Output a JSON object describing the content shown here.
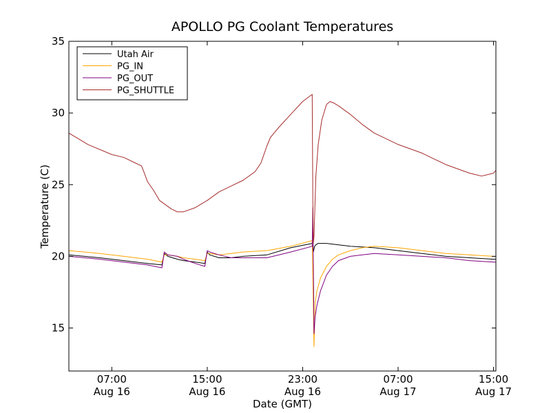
{
  "chart_data": {
    "type": "line",
    "title": "APOLLO PG Coolant Temperatures",
    "xlabel": "Date (GMT)",
    "ylabel": "Temperature (C)",
    "ylim": [
      12,
      35
    ],
    "xlim_hours_since_aug16_0000": [
      3.4,
      39.2
    ],
    "x_ticks": [
      {
        "hour": 7,
        "time": "07:00",
        "date": "Aug 16"
      },
      {
        "hour": 15,
        "time": "15:00",
        "date": "Aug 16"
      },
      {
        "hour": 23,
        "time": "23:00",
        "date": "Aug 16"
      },
      {
        "hour": 31,
        "time": "07:00",
        "date": "Aug 17"
      },
      {
        "hour": 39,
        "time": "15:00",
        "date": "Aug 17"
      }
    ],
    "y_ticks": [
      15,
      20,
      25,
      30,
      35
    ],
    "grid": false,
    "legend": "top-left",
    "series": [
      {
        "name": "Utah Air",
        "color": "#000000",
        "x": [
          3.4,
          6,
          8,
          10,
          11.2,
          11.4,
          11.7,
          12.5,
          13,
          14,
          14.8,
          15,
          15.2,
          16,
          17,
          18,
          20,
          22,
          23.8,
          23.9,
          24,
          24.1,
          24.3,
          24.5,
          25,
          27,
          29,
          31,
          33,
          35,
          37,
          39,
          39.2
        ],
        "y": [
          20.1,
          19.9,
          19.7,
          19.5,
          19.4,
          20.2,
          20.0,
          19.8,
          19.7,
          19.6,
          19.5,
          20.3,
          20.1,
          19.9,
          19.9,
          20.0,
          20.1,
          20.6,
          20.9,
          20.3,
          20.7,
          20.8,
          20.9,
          20.9,
          20.9,
          20.7,
          20.6,
          20.4,
          20.2,
          20.0,
          19.9,
          19.8,
          19.8
        ]
      },
      {
        "name": "PG_IN",
        "color": "#ffa500",
        "x": [
          3.4,
          6,
          8,
          10,
          11.2,
          11.4,
          11.7,
          12.5,
          13,
          14,
          14.8,
          15,
          15.2,
          16,
          17,
          18,
          20,
          22,
          23.8,
          23.95,
          24.05,
          24.2,
          24.5,
          25,
          25.5,
          26,
          27,
          28,
          29,
          31,
          33,
          35,
          37,
          39,
          39.2
        ],
        "y": [
          20.4,
          20.2,
          20.0,
          19.8,
          19.6,
          20.1,
          20.1,
          20.0,
          19.9,
          19.8,
          19.7,
          20.2,
          20.2,
          20.1,
          20.2,
          20.3,
          20.4,
          20.7,
          21.1,
          13.7,
          16.8,
          17.6,
          18.5,
          19.3,
          19.8,
          20.1,
          20.4,
          20.6,
          20.7,
          20.6,
          20.4,
          20.2,
          20.1,
          20.0,
          20.0
        ]
      },
      {
        "name": "PG_OUT",
        "color": "#800080",
        "x": [
          3.4,
          6,
          8,
          10,
          11.2,
          11.4,
          11.7,
          12.5,
          13,
          14,
          14.8,
          15,
          15.2,
          16,
          17,
          18,
          20,
          22,
          23.8,
          23.85,
          23.95,
          24.05,
          24.2,
          24.5,
          25,
          25.5,
          26,
          27,
          28,
          29,
          31,
          33,
          35,
          37,
          39,
          39.2
        ],
        "y": [
          20.0,
          19.8,
          19.6,
          19.4,
          19.2,
          20.3,
          20.1,
          20.0,
          19.8,
          19.5,
          19.3,
          20.4,
          20.3,
          20.1,
          19.9,
          19.9,
          19.9,
          20.3,
          20.7,
          23.4,
          14.6,
          15.8,
          16.6,
          17.6,
          18.7,
          19.3,
          19.7,
          20.0,
          20.1,
          20.2,
          20.1,
          20.0,
          19.9,
          19.7,
          19.6,
          19.6
        ]
      },
      {
        "name": "PG_SHUTTLE",
        "color": "#a52a2a",
        "x": [
          3.4,
          5,
          7,
          8,
          9,
          9.5,
          10,
          10.5,
          11,
          12,
          12.5,
          13,
          14,
          15,
          16,
          17,
          18,
          19,
          19.5,
          20,
          20.3,
          20.6,
          21,
          22,
          23,
          23.8,
          23.85,
          23.9,
          23.95,
          24.1,
          24.3,
          24.6,
          25,
          25.3,
          25.6,
          26,
          27,
          28,
          29,
          31,
          33,
          34,
          35,
          36,
          37,
          38,
          39,
          39.2
        ],
        "y": [
          28.6,
          27.8,
          27.1,
          26.9,
          26.5,
          26.3,
          25.2,
          24.6,
          23.9,
          23.3,
          23.1,
          23.1,
          23.4,
          23.9,
          24.5,
          24.9,
          25.3,
          25.9,
          26.5,
          27.7,
          28.3,
          28.6,
          29.0,
          29.9,
          30.8,
          31.3,
          24.0,
          20.9,
          21.4,
          25.5,
          27.8,
          29.5,
          30.6,
          30.8,
          30.7,
          30.5,
          29.9,
          29.2,
          28.6,
          27.8,
          27.2,
          26.8,
          26.4,
          26.1,
          25.8,
          25.6,
          25.8,
          26.0
        ]
      }
    ]
  }
}
